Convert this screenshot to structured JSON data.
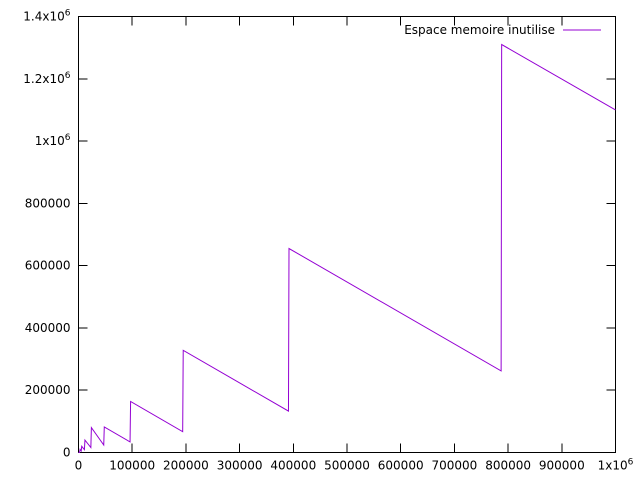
{
  "chart_data": {
    "type": "line",
    "title": "",
    "xlabel": "",
    "ylabel": "",
    "xlim": [
      0,
      1000000
    ],
    "ylim": [
      0,
      1400000
    ],
    "grid": false,
    "legend_position": "top-right",
    "x_ticks": [
      {
        "value": 0,
        "label": "0",
        "sup": ""
      },
      {
        "value": 100000,
        "label": "100000",
        "sup": ""
      },
      {
        "value": 200000,
        "label": "200000",
        "sup": ""
      },
      {
        "value": 300000,
        "label": "300000",
        "sup": ""
      },
      {
        "value": 400000,
        "label": "400000",
        "sup": ""
      },
      {
        "value": 500000,
        "label": "500000",
        "sup": ""
      },
      {
        "value": 600000,
        "label": "600000",
        "sup": ""
      },
      {
        "value": 700000,
        "label": "700000",
        "sup": ""
      },
      {
        "value": 800000,
        "label": "800000",
        "sup": ""
      },
      {
        "value": 900000,
        "label": "900000",
        "sup": ""
      },
      {
        "value": 1000000,
        "label": "1x10",
        "sup": "6"
      }
    ],
    "y_ticks": [
      {
        "value": 0,
        "label": "0",
        "sup": ""
      },
      {
        "value": 200000,
        "label": "200000",
        "sup": ""
      },
      {
        "value": 400000,
        "label": "400000",
        "sup": ""
      },
      {
        "value": 600000,
        "label": "600000",
        "sup": ""
      },
      {
        "value": 800000,
        "label": "800000",
        "sup": ""
      },
      {
        "value": 1000000,
        "label": "1x10",
        "sup": "6"
      },
      {
        "value": 1200000,
        "label": "1.2x10",
        "sup": "6"
      },
      {
        "value": 1400000,
        "label": "1.4x10",
        "sup": "6"
      }
    ],
    "series": [
      {
        "name": "Espace memoire inutilise",
        "color": "#9400d3",
        "x": [
          0,
          2000,
          3000,
          5000,
          6000,
          11000,
          12000,
          23000,
          24000,
          47000,
          48000,
          96000,
          97000,
          194000,
          195000,
          391000,
          392000,
          787000,
          788000,
          1000000
        ],
        "y": [
          0,
          0,
          10000,
          5000,
          20000,
          9000,
          40000,
          16000,
          80000,
          24000,
          82000,
          34000,
          164000,
          67000,
          328000,
          133000,
          655000,
          262000,
          1310000,
          1100000
        ]
      }
    ]
  }
}
